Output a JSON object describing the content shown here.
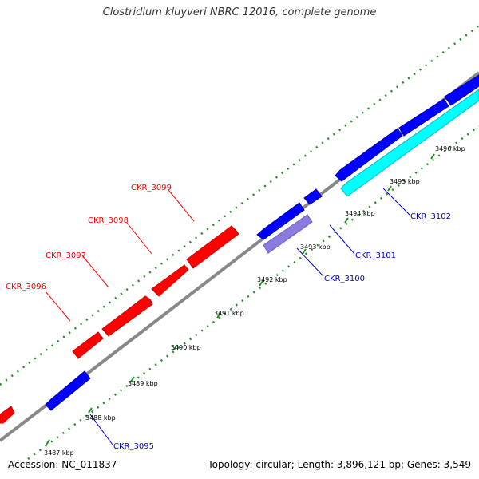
{
  "title": "Clostridium kluyveri NBRC 12016, complete genome",
  "footer": {
    "accession": "Accession: NC_011837",
    "topology": "Topology: circular; Length: 3,896,121 bp; Genes: 3,549"
  },
  "colors": {
    "backbone": "#888888",
    "tick": "#228b22",
    "forward_gene": "#ff0000",
    "reverse_gene": "#0000ff",
    "light_blue_gene": "#8a7bde",
    "cyan_gene": "#00ffff",
    "forward_label": "#ff0000",
    "reverse_label": "#0000cc"
  },
  "scale_labels": [
    "3487 kbp",
    "3488 kbp",
    "3489 kbp",
    "3490 kbp",
    "3491 kbp",
    "3492 kbp",
    "3493 kbp",
    "3494 kbp",
    "3495 kbp",
    "3496 kbp"
  ],
  "gene_labels": {
    "ckr_3096": "CKR_3096",
    "ckr_3097": "CKR_3097",
    "ckr_3098": "CKR_3098",
    "ckr_3099": "CKR_3099",
    "ckr_3095": "CKR_3095",
    "ckr_3100": "CKR_3100",
    "ckr_3101": "CKR_3101",
    "ckr_3102": "CKR_3102"
  }
}
